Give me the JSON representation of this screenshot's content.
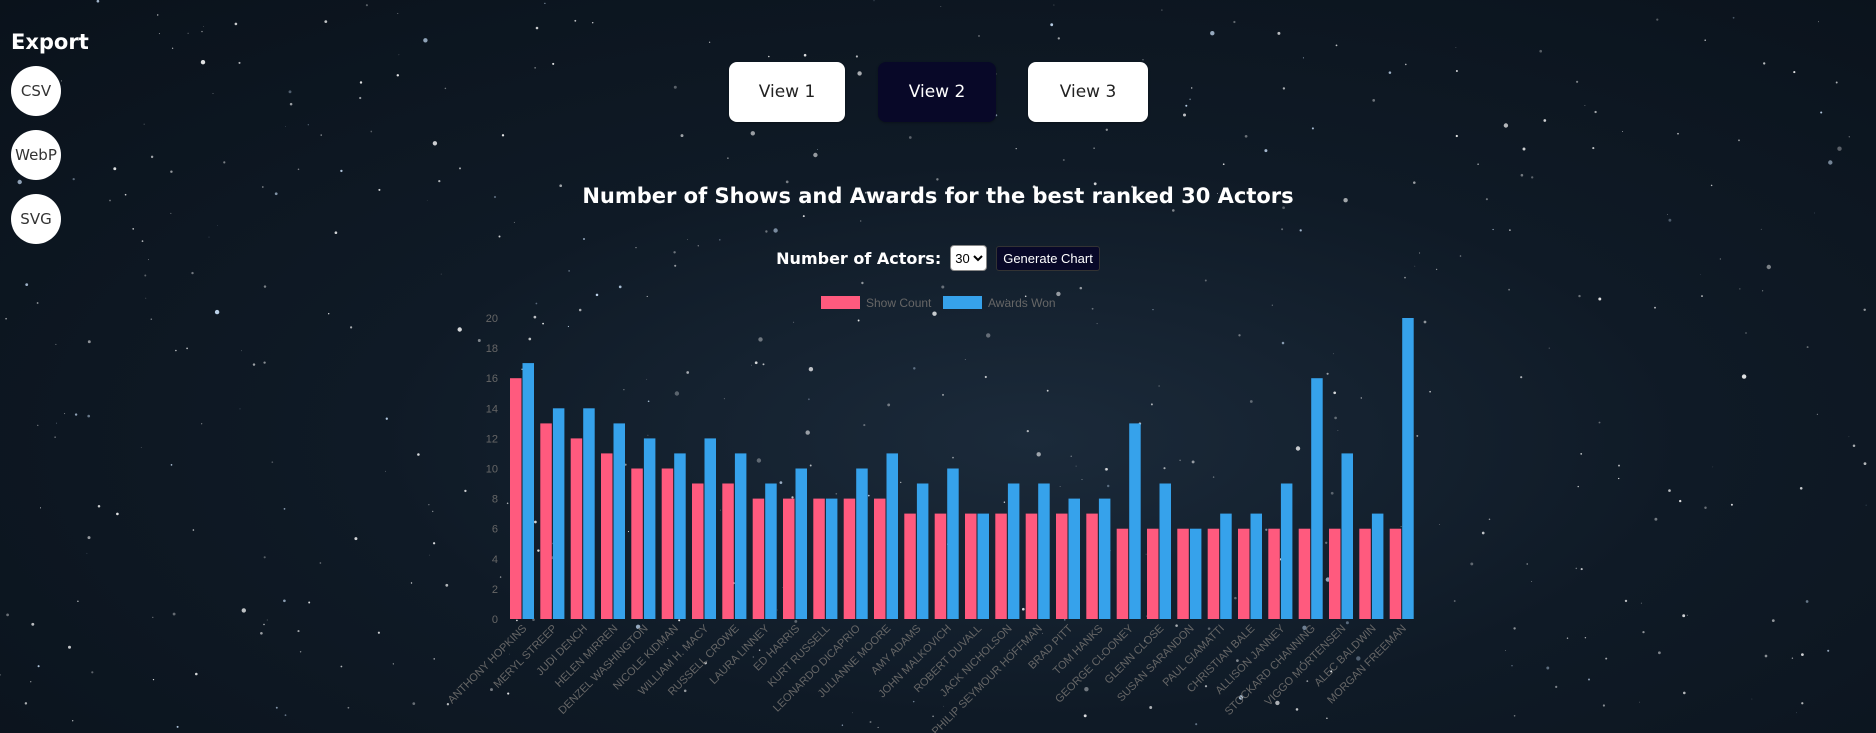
{
  "export": {
    "title": "Export",
    "buttons": [
      "CSV",
      "WebP",
      "SVG"
    ]
  },
  "views": [
    {
      "label": "View 1",
      "active": false
    },
    {
      "label": "View 2",
      "active": true
    },
    {
      "label": "View 3",
      "active": false
    }
  ],
  "controls": {
    "label": "Number of Actors:",
    "selected": "30",
    "generate_label": "Generate Chart"
  },
  "colors": {
    "show_count": "#ff5a7e",
    "awards_won": "#36a2eb",
    "active_button": "#080828"
  },
  "chart_data": {
    "type": "bar",
    "title": "Number of Shows and Awards for the best ranked 30 Actors",
    "ylim": [
      0,
      20
    ],
    "yticks": [
      0,
      2,
      4,
      6,
      8,
      10,
      12,
      14,
      16,
      18,
      20
    ],
    "legend_position": "top",
    "grid": false,
    "categories": [
      "ANTHONY HOPKINS",
      "MERYL STREEP",
      "JUDI DENCH",
      "HELEN MIRREN",
      "DENZEL WASHINGTON",
      "NICOLE KIDMAN",
      "WILLIAM H. MACY",
      "RUSSELL CROWE",
      "LAURA LINNEY",
      "ED HARRIS",
      "KURT RUSSELL",
      "LEONARDO DICAPRIO",
      "JULIANNE MOORE",
      "AMY ADAMS",
      "JOHN MALKOVICH",
      "ROBERT DUVALL",
      "JACK NICHOLSON",
      "PHILIP SEYMOUR HOFFMAN",
      "BRAD PITT",
      "TOM HANKS",
      "GEORGE CLOONEY",
      "GLENN CLOSE",
      "SUSAN SARANDON",
      "PAUL GIAMATTI",
      "CHRISTIAN BALE",
      "ALLISON JANNEY",
      "STOCKARD CHANNING",
      "VIGGO MORTENSEN",
      "ALEC BALDWIN",
      "MORGAN FREEMAN"
    ],
    "series": [
      {
        "name": "Show Count",
        "values": [
          16,
          13,
          12,
          11,
          10,
          10,
          9,
          9,
          8,
          8,
          8,
          8,
          8,
          7,
          7,
          7,
          7,
          7,
          7,
          7,
          6,
          6,
          6,
          6,
          6,
          6,
          6,
          6,
          6,
          6
        ]
      },
      {
        "name": "Awards Won",
        "values": [
          17,
          14,
          14,
          13,
          12,
          11,
          12,
          11,
          9,
          10,
          8,
          10,
          11,
          9,
          10,
          7,
          9,
          9,
          8,
          8,
          13,
          9,
          6,
          7,
          7,
          9,
          16,
          11,
          7,
          20
        ]
      }
    ]
  }
}
